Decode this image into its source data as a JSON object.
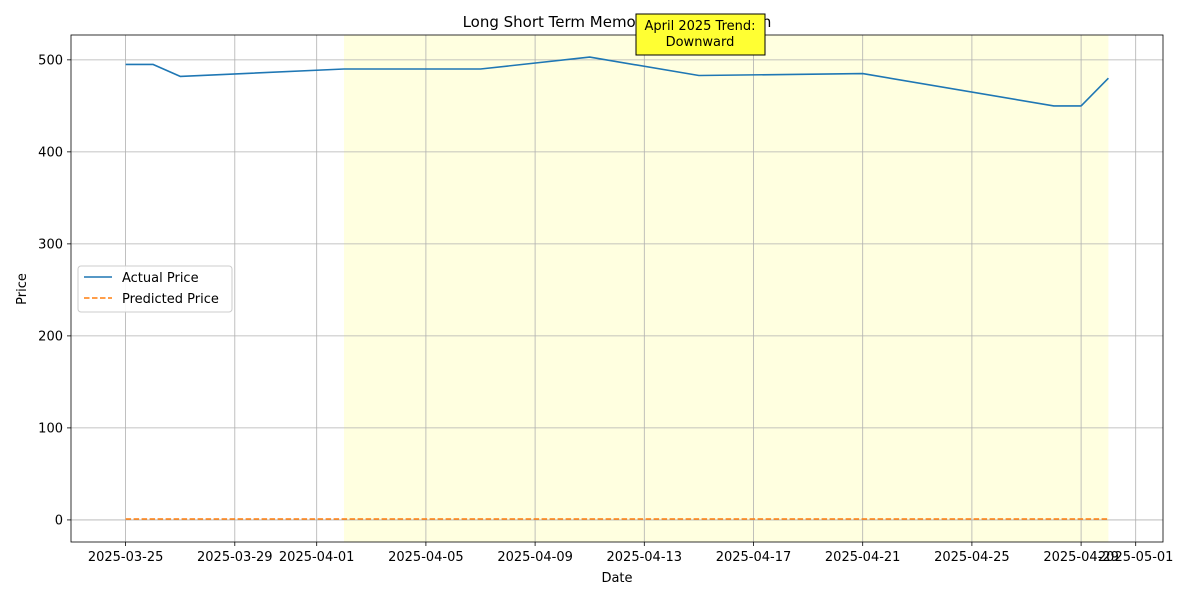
{
  "chart_data": {
    "type": "line",
    "title": "Long Short Term Memory Price Prediction",
    "xlabel": "Date",
    "ylabel": "Price",
    "x_type": "date",
    "xlim": [
      "2025-03-23",
      "2025-05-02"
    ],
    "ylim": [
      -24,
      527
    ],
    "x_ticks": [
      "2025-03-25",
      "2025-03-29",
      "2025-04-01",
      "2025-04-05",
      "2025-04-09",
      "2025-04-13",
      "2025-04-17",
      "2025-04-21",
      "2025-04-25",
      "2025-04-29",
      "2025-05-01"
    ],
    "y_ticks": [
      0,
      100,
      200,
      300,
      400,
      500
    ],
    "grid": true,
    "legend_position": "center-left",
    "shaded_region": {
      "start": "2025-04-02",
      "end": "2025-04-30",
      "color": "#ffffe0"
    },
    "annotation": {
      "lines": [
        "April 2025 Trend:",
        "Downward"
      ],
      "date": "2025-04-15",
      "background": "#ffff33"
    },
    "series": [
      {
        "name": "Actual Price",
        "color": "#1f77b4",
        "style": "solid",
        "points": [
          [
            "2025-03-25",
            495
          ],
          [
            "2025-03-26",
            495
          ],
          [
            "2025-03-27",
            482
          ],
          [
            "2025-04-02",
            490
          ],
          [
            "2025-04-07",
            490
          ],
          [
            "2025-04-11",
            503
          ],
          [
            "2025-04-15",
            483
          ],
          [
            "2025-04-21",
            485
          ],
          [
            "2025-04-28",
            450
          ],
          [
            "2025-04-29",
            450
          ],
          [
            "2025-04-30",
            480
          ]
        ]
      },
      {
        "name": "Predicted Price",
        "color": "#ff7f0e",
        "style": "dashed",
        "points": [
          [
            "2025-03-25",
            1
          ],
          [
            "2025-03-30",
            1
          ],
          [
            "2025-04-05",
            1
          ],
          [
            "2025-04-10",
            1
          ],
          [
            "2025-04-15",
            1
          ],
          [
            "2025-04-20",
            1
          ],
          [
            "2025-04-25",
            1
          ],
          [
            "2025-04-30",
            1
          ]
        ]
      }
    ]
  }
}
